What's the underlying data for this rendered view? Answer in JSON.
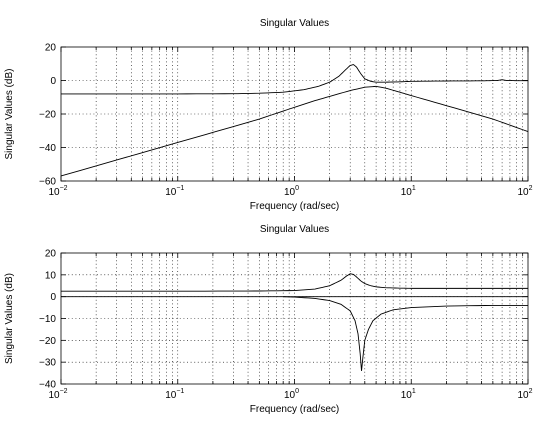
{
  "chart_data": [
    {
      "type": "line",
      "title": "Singular Values",
      "xlabel": "Frequency (rad/sec)",
      "ylabel": "Singular Values (dB)",
      "xscale": "log",
      "xlim": [
        0.01,
        100
      ],
      "ylim": [
        -60,
        20
      ],
      "grid": true,
      "x_ticks": [
        {
          "base": "10",
          "exp": "−2"
        },
        {
          "base": "10",
          "exp": "−1"
        },
        {
          "base": "10",
          "exp": "0"
        },
        {
          "base": "10",
          "exp": "1"
        },
        {
          "base": "10",
          "exp": "2"
        }
      ],
      "y_ticks": [
        "20",
        "0",
        "−20",
        "−40",
        "−60"
      ],
      "series": [
        {
          "x": [
            0.01,
            0.1,
            0.3,
            0.5,
            0.8,
            1.2,
            1.6,
            2.0,
            2.4,
            2.7,
            3.0,
            3.2,
            3.4,
            3.7,
            4.0,
            4.5,
            5.0,
            6.0,
            8.0,
            10,
            20,
            40,
            55,
            60,
            65,
            80,
            100
          ],
          "y": [
            -8,
            -8,
            -7.9,
            -7.6,
            -7,
            -5.5,
            -3.5,
            -1,
            2.5,
            6,
            9,
            9.5,
            8,
            4,
            1,
            -0.5,
            -1,
            -1,
            -0.8,
            -0.5,
            -0.3,
            -0.2,
            0,
            0.5,
            0,
            -0.1,
            -0.1
          ]
        },
        {
          "x": [
            0.01,
            0.1,
            0.3,
            0.5,
            1,
            1.5,
            2,
            3,
            4,
            5,
            6,
            8,
            10,
            20,
            50,
            100
          ],
          "y": [
            -57,
            -37,
            -27.5,
            -23,
            -16,
            -12,
            -9.5,
            -6,
            -4,
            -3.5,
            -4.5,
            -7,
            -9,
            -15,
            -23,
            -30.5
          ]
        }
      ]
    },
    {
      "type": "line",
      "title": "Singular Values",
      "xlabel": "Frequency (rad/sec)",
      "ylabel": "Singular Values (dB)",
      "xscale": "log",
      "xlim": [
        0.01,
        100
      ],
      "ylim": [
        -40,
        20
      ],
      "grid": true,
      "x_ticks": [
        {
          "base": "10",
          "exp": "−2"
        },
        {
          "base": "10",
          "exp": "−1"
        },
        {
          "base": "10",
          "exp": "0"
        },
        {
          "base": "10",
          "exp": "1"
        },
        {
          "base": "10",
          "exp": "2"
        }
      ],
      "y_ticks": [
        "20",
        "10",
        "0",
        "−10",
        "−20",
        "−30",
        "−40"
      ],
      "series": [
        {
          "x": [
            0.01,
            0.1,
            0.5,
            1,
            1.5,
            2,
            2.5,
            2.8,
            3.0,
            3.2,
            3.4,
            3.7,
            4.0,
            4.5,
            5,
            6,
            8,
            10,
            20,
            50,
            100
          ],
          "y": [
            2.5,
            2.5,
            2.6,
            2.8,
            3.5,
            5,
            7.5,
            9.5,
            10.5,
            10.2,
            9,
            7.2,
            6,
            5,
            4.5,
            4.1,
            3.9,
            3.8,
            3.8,
            3.8,
            3.8
          ]
        },
        {
          "x": [
            0.8,
            1,
            1.5,
            2,
            2.5,
            3.0,
            3.3,
            3.5,
            3.65,
            3.75,
            3.85,
            4.0,
            4.3,
            4.7,
            5.5,
            7,
            10,
            20,
            50,
            100
          ],
          "y": [
            0,
            -0.2,
            -0.8,
            -1.8,
            -3.5,
            -6.5,
            -11,
            -17,
            -26,
            -34,
            -28,
            -20,
            -15,
            -11,
            -8,
            -6,
            -5,
            -4.3,
            -4,
            -4
          ]
        },
        {
          "x": [
            0.01,
            100
          ],
          "y": [
            0,
            0
          ]
        }
      ]
    }
  ]
}
